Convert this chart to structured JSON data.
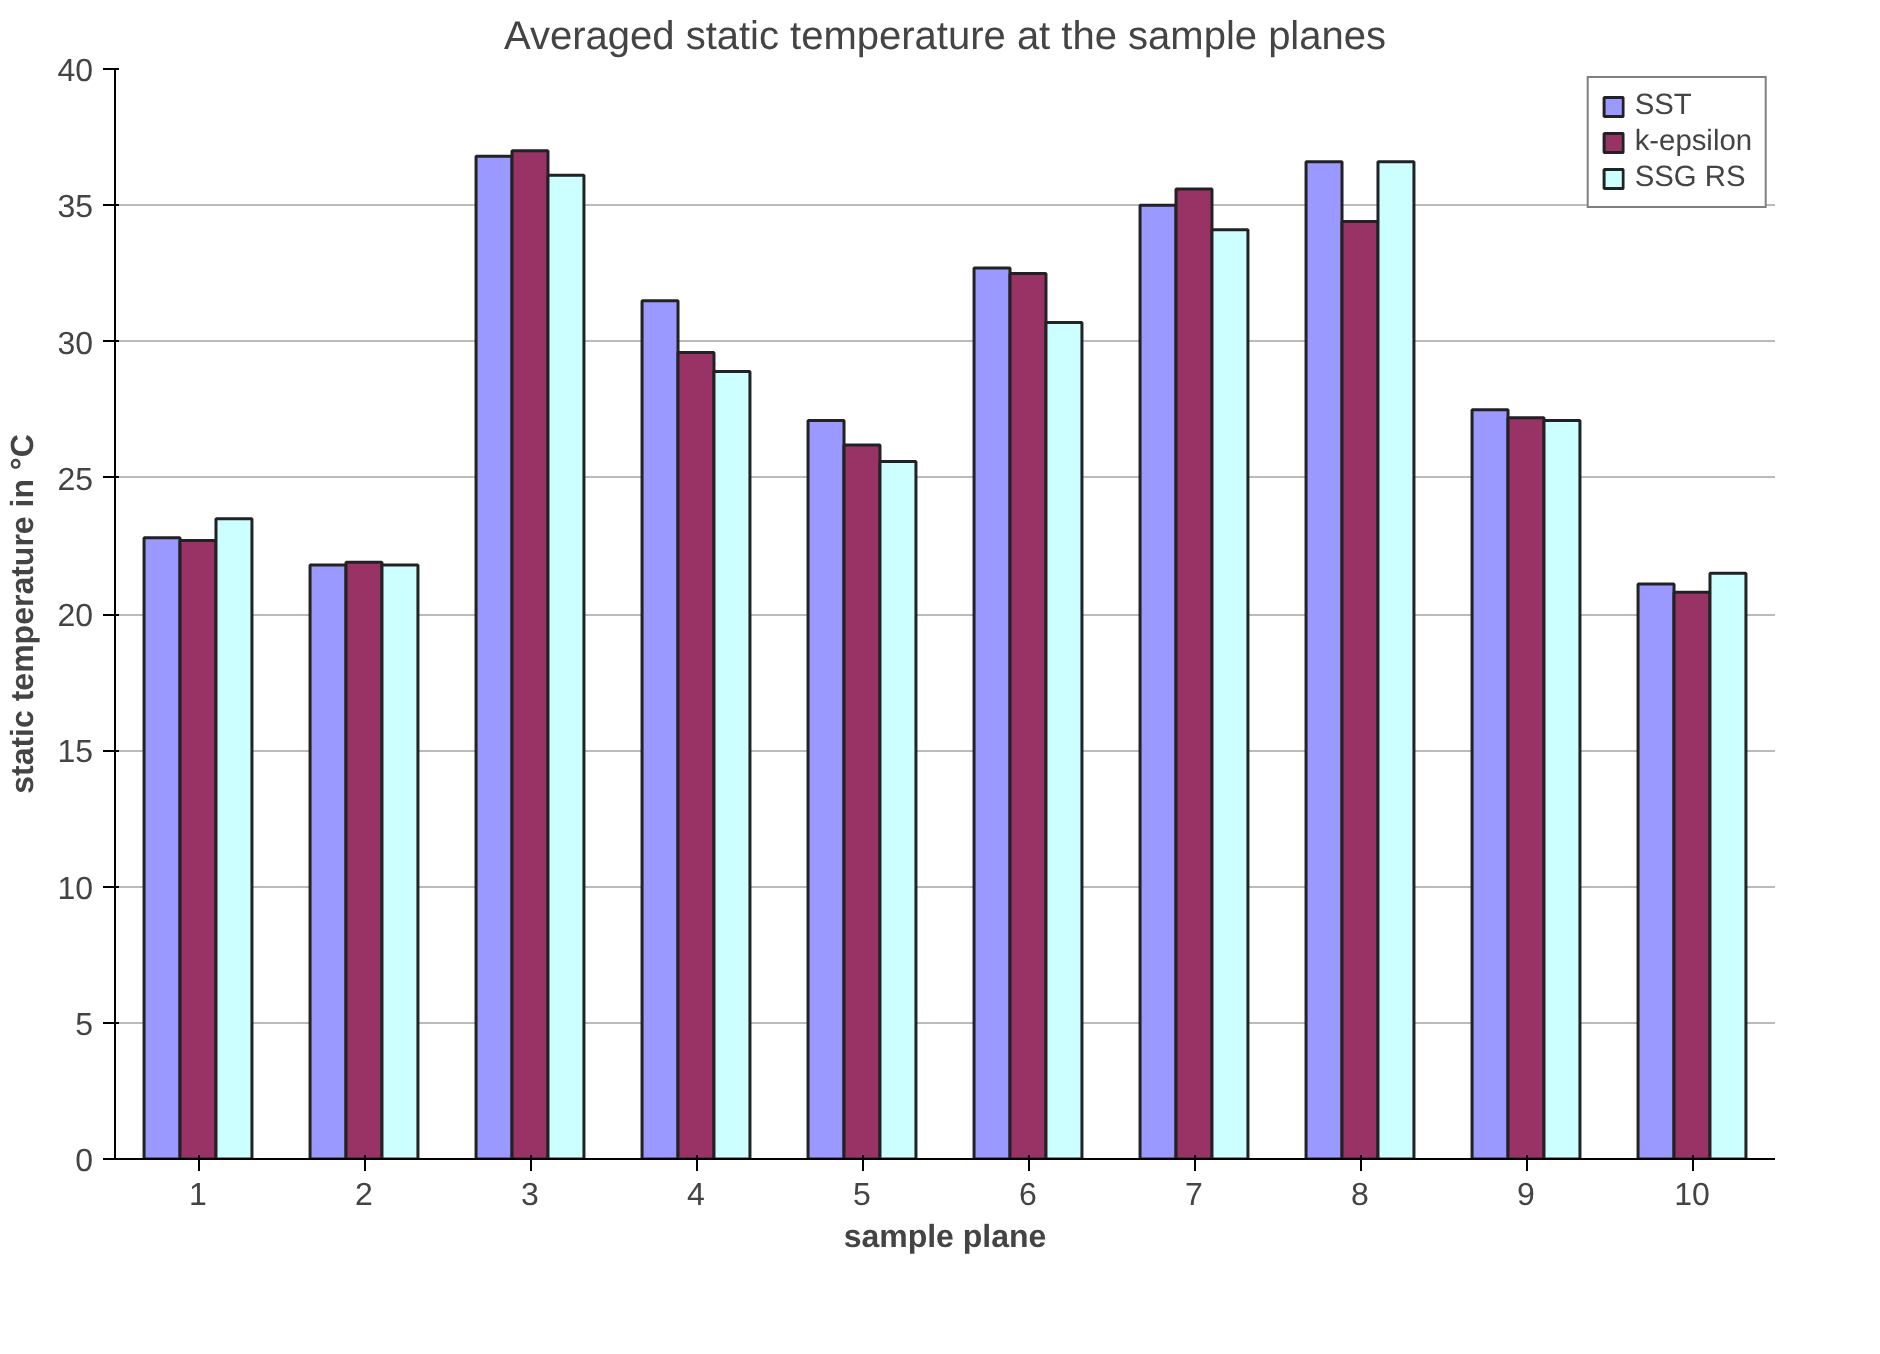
{
  "chart_data": {
    "type": "bar",
    "title": "Averaged static temperature at the sample planes",
    "xlabel": "sample plane",
    "ylabel": "static temperature in °C",
    "categories": [
      "1",
      "2",
      "3",
      "4",
      "5",
      "6",
      "7",
      "8",
      "9",
      "10"
    ],
    "series": [
      {
        "name": "SST",
        "color": "#9999ff",
        "values": [
          22.8,
          21.8,
          36.8,
          31.5,
          27.1,
          32.7,
          35.0,
          36.6,
          27.5,
          21.1
        ]
      },
      {
        "name": "k-epsilon",
        "color": "#993366",
        "values": [
          22.7,
          21.9,
          37.0,
          29.6,
          26.2,
          32.5,
          35.6,
          34.4,
          27.2,
          20.8
        ]
      },
      {
        "name": "SSG RS",
        "color": "#ccffff",
        "values": [
          23.5,
          21.8,
          36.1,
          28.9,
          25.6,
          30.7,
          34.1,
          36.6,
          27.1,
          21.5
        ]
      }
    ],
    "ylim": [
      0,
      40
    ],
    "yticks": [
      0,
      5,
      10,
      15,
      20,
      25,
      30,
      35,
      40
    ],
    "grid": "y",
    "legend": "top right"
  }
}
